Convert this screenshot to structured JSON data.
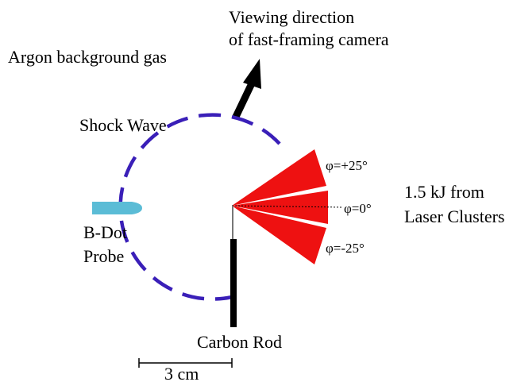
{
  "labels": {
    "viewing_line1": "Viewing direction",
    "viewing_line2": "of fast-framing camera",
    "background_gas": "Argon background gas",
    "shock_wave": "Shock Wave",
    "bdot_line1": "B-Dot",
    "bdot_line2": "Probe",
    "carbon_rod": "Carbon Rod",
    "scale": "3 cm",
    "laser_line1": "1.5 kJ from",
    "laser_line2": "Laser Clusters",
    "phi_plus": "φ=+25°",
    "phi_zero": "φ=0°",
    "phi_minus": "φ=-25°"
  },
  "colors": {
    "shock_wave": "#3a1fb8",
    "laser_beam": "#ee1111",
    "probe": "#5bbcd6",
    "rod": "#000000",
    "arrow": "#000000"
  }
}
